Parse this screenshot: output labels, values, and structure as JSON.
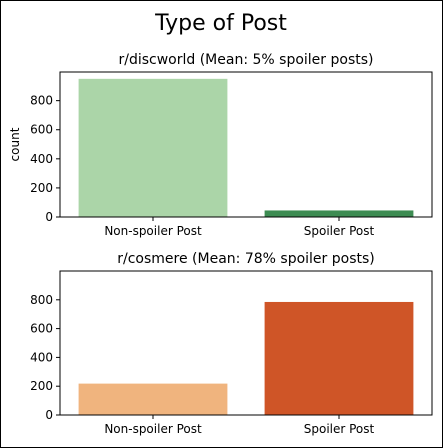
{
  "figure": {
    "title": "Type of Post"
  },
  "chart_data": [
    {
      "type": "bar",
      "title": "r/discworld (Mean: 5% spoiler posts)",
      "categories": [
        "Non-spoiler Post",
        "Spoiler Post"
      ],
      "values": [
        950,
        45
      ],
      "colors": [
        "#abd5a8",
        "#3d8c52"
      ],
      "ylabel": "count",
      "xlabel": "",
      "ylim": [
        0,
        997
      ],
      "yticks": [
        0,
        200,
        400,
        600,
        800
      ],
      "grid": false
    },
    {
      "type": "bar",
      "title": "r/cosmere (Mean: 78% spoiler posts)",
      "categories": [
        "Non-spoiler Post",
        "Spoiler Post"
      ],
      "values": [
        218,
        785
      ],
      "colors": [
        "#f0b47e",
        "#cf5527"
      ],
      "ylabel": "",
      "xlabel": "",
      "ylim": [
        0,
        1000
      ],
      "yticks": [
        0,
        200,
        400,
        600,
        800
      ],
      "grid": false
    }
  ]
}
